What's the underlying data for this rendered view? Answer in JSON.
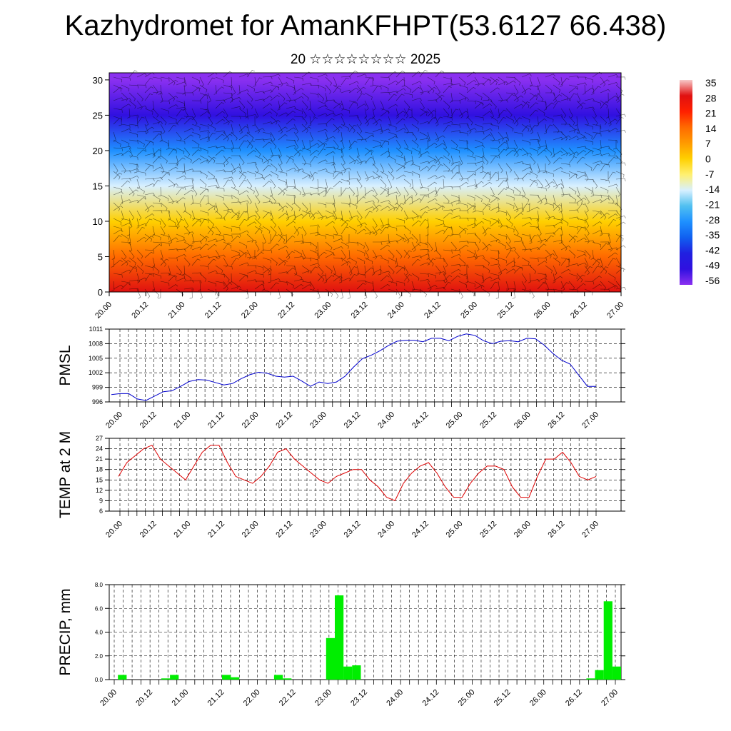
{
  "title": "Kazhydromet for AmanKFHPT(53.6127 66.438)",
  "subtitle": "20 ☆☆☆☆☆☆☆☆ 2025",
  "time_ticks": [
    "20.00",
    "20.12",
    "21.00",
    "21.12",
    "22.00",
    "22.12",
    "23.00",
    "23.12",
    "24.00",
    "24.12",
    "25.00",
    "25.12",
    "26.00",
    "26.12",
    "27.00"
  ],
  "colors": {
    "pmsl": "#0000cc",
    "temp": "#dd0000",
    "precip": "#00ee00"
  },
  "chart_data": [
    {
      "type": "heatmap",
      "title": "",
      "xlabel": "",
      "ylabel": "",
      "y_ticks": [
        "0",
        "5",
        "10",
        "15",
        "20",
        "25",
        "30"
      ],
      "ylim": [
        0,
        31
      ],
      "colorbar": {
        "labels": [
          "35",
          "28",
          "21",
          "14",
          "7",
          "0",
          "-7",
          "-14",
          "-21",
          "-28",
          "-35",
          "-42",
          "-49",
          "-56"
        ],
        "colors": [
          "#f7c8c8",
          "#e01010",
          "#ff2000",
          "#ff6a00",
          "#ff9a00",
          "#ffd000",
          "#fff070",
          "#d8f0ff",
          "#50c0f0",
          "#1e90ff",
          "#1060f0",
          "#2020e0",
          "#3010e0",
          "#8a30f0"
        ]
      },
      "temperature_profile_by_height": [
        {
          "h": 0,
          "t": 28
        },
        {
          "h": 5,
          "t": 18
        },
        {
          "h": 10,
          "t": 6
        },
        {
          "h": 15,
          "t": -10
        },
        {
          "h": 20,
          "t": -28
        },
        {
          "h": 25,
          "t": -45
        },
        {
          "h": 30,
          "t": -52
        }
      ],
      "overlay": "wind barbs"
    },
    {
      "type": "line",
      "ylabel": "PMSL",
      "ylim": [
        996,
        1011
      ],
      "y_ticks": [
        "996",
        "999",
        "1002",
        "1005",
        "1008",
        "1011"
      ],
      "series": [
        {
          "values": [
            997.5,
            997.7,
            997.7,
            996.6,
            996.3,
            997.2,
            998.1,
            998.3,
            999.2,
            1000.2,
            1000.6,
            1000.5,
            1000.0,
            999.5,
            999.8,
            1000.8,
            1001.6,
            1002.1,
            1001.9,
            1001.3,
            1001.1,
            1001.3,
            1000.3,
            999.2,
            1000.1,
            999.8,
            1000.1,
            1001.3,
            1003.2,
            1004.9,
            1005.6,
            1006.5,
            1007.6,
            1008.5,
            1008.7,
            1008.7,
            1008.4,
            1009.1,
            1009.1,
            1008.6,
            1009.5,
            1010.0,
            1009.7,
            1008.6,
            1008.0,
            1008.5,
            1008.6,
            1008.4,
            1009.1,
            1009.0,
            1007.7,
            1006.0,
            1004.6,
            1003.8,
            1001.5,
            999.2,
            999.2
          ]
        }
      ]
    },
    {
      "type": "line",
      "ylabel": "TEMP at 2 M",
      "ylim": [
        6,
        27
      ],
      "y_ticks": [
        "6",
        "9",
        "12",
        "15",
        "18",
        "21",
        "24",
        "27"
      ],
      "series": [
        {
          "values": [
            16,
            20,
            22,
            24,
            25,
            21,
            19,
            17,
            15,
            19,
            23,
            25,
            25,
            20,
            16,
            15,
            14,
            16,
            19,
            23,
            24,
            21,
            19,
            17,
            15,
            14,
            16,
            17,
            18,
            18,
            15,
            13,
            10,
            9,
            14,
            17,
            19,
            20,
            17,
            13,
            10,
            10,
            14,
            17,
            19,
            19,
            18,
            13,
            10,
            10,
            16,
            21,
            21,
            23,
            20,
            16,
            15,
            16
          ]
        }
      ]
    },
    {
      "type": "bar",
      "ylabel": "PRECIP, mm",
      "ylim": [
        0,
        8
      ],
      "y_ticks": [
        "0.0",
        "2.0",
        "4.0",
        "6.0",
        "8.0"
      ],
      "values": [
        0,
        0.4,
        0,
        0,
        0,
        0,
        0.1,
        0.4,
        0,
        0,
        0,
        0,
        0,
        0.4,
        0.2,
        0,
        0,
        0,
        0,
        0.4,
        0.1,
        0,
        0,
        0,
        0,
        3.5,
        7.1,
        1.1,
        1.2,
        0,
        0,
        0,
        0,
        0,
        0,
        0,
        0,
        0,
        0,
        0,
        0,
        0,
        0,
        0,
        0,
        0,
        0,
        0,
        0,
        0,
        0,
        0,
        0,
        0,
        0,
        0.1,
        0.8,
        6.6,
        1.1
      ]
    }
  ]
}
